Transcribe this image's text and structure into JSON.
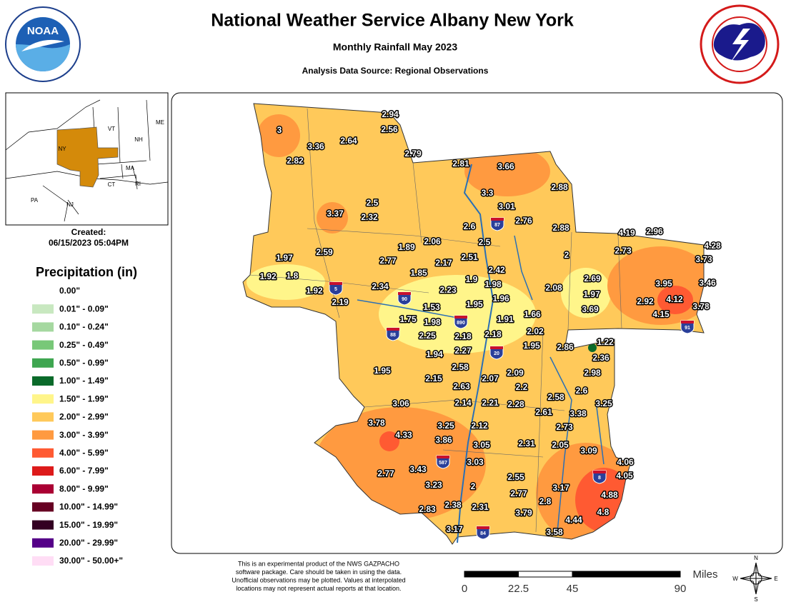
{
  "header": {
    "title": "National Weather Service Albany New York",
    "subtitle": "Monthly Rainfall May 2023",
    "source": "Analysis Data Source: Regional Observations"
  },
  "logos": {
    "noaa": "NOAA"
  },
  "inset": {
    "labels": [
      "ME",
      "VT",
      "NH",
      "NY",
      "MA",
      "CT",
      "RI",
      "PA",
      "NJ"
    ]
  },
  "created": {
    "label": "Created:",
    "date": "06/15/2023 05:04PM"
  },
  "legend": {
    "title": "Precipitation (in)",
    "items": [
      {
        "label": "0.00\"",
        "color": "#ffffff"
      },
      {
        "label": "0.01\" - 0.09\"",
        "color": "#c8e8c0"
      },
      {
        "label": "0.10\" - 0.24\"",
        "color": "#a5d8a0"
      },
      {
        "label": "0.25\" - 0.49\"",
        "color": "#78c878"
      },
      {
        "label": "0.50\" - 0.99\"",
        "color": "#3ea650"
      },
      {
        "label": "1.00\" - 1.49\"",
        "color": "#0a6a2a"
      },
      {
        "label": "1.50\" - 1.99\"",
        "color": "#fff58a"
      },
      {
        "label": "2.00\" - 2.99\"",
        "color": "#ffc95a"
      },
      {
        "label": "3.00\" - 3.99\"",
        "color": "#ff9a40"
      },
      {
        "label": "4.00\" - 5.99\"",
        "color": "#ff5a32"
      },
      {
        "label": "6.00\" - 7.99\"",
        "color": "#dd1a1a"
      },
      {
        "label": "8.00\" - 9.99\"",
        "color": "#aa0033"
      },
      {
        "label": "10.00\" - 14.99\"",
        "color": "#660022"
      },
      {
        "label": "15.00\" - 19.99\"",
        "color": "#330022"
      },
      {
        "label": "20.00\" - 29.99\"",
        "color": "#550088"
      },
      {
        "label": "30.00\" - 50.00+\"",
        "color": "#ffddf5"
      }
    ]
  },
  "map": {
    "stations": [
      2.94,
      2.56,
      3,
      3.36,
      2.64,
      2.82,
      2.79,
      2.81,
      3.66,
      3.3,
      2.88,
      3.01,
      2.5,
      3.37,
      2.32,
      2.76,
      2.6,
      2.88,
      4.19,
      2.96,
      4.28,
      2.06,
      2.5,
      1.89,
      2.73,
      2.59,
      1.97,
      2,
      2.17,
      2.51,
      2.77,
      3.73,
      1.85,
      2.42,
      1.92,
      1.8,
      1.9,
      1.98,
      2.69,
      3.95,
      3.46,
      2.34,
      1.92,
      2.23,
      2.08,
      1.97,
      1.96,
      2.92,
      4.12,
      2.19,
      1.95,
      1.53,
      3.69,
      3.78,
      4.15,
      1.66,
      1.75,
      1.98,
      1.91,
      2.02,
      2.25,
      2.18,
      2.18,
      1.22,
      1.95,
      2.86,
      2.27,
      1.94,
      2.36,
      2.58,
      1.95,
      2.98,
      2.09,
      2.15,
      2.07,
      2.63,
      2.2,
      2.6,
      2.58,
      3.06,
      2.14,
      2.21,
      2.28,
      3.25,
      2.61,
      3.38,
      3.78,
      3.25,
      2.12,
      2.73,
      4.33,
      3.86,
      3.05,
      2.31,
      2.05,
      3.09,
      3.03,
      4.06,
      3.43,
      2.77,
      4.05,
      2.55,
      2,
      3.23,
      3.17,
      2.77,
      4.88,
      2.8,
      2.38,
      2.31,
      2.83,
      4.8,
      3.79,
      4.44,
      3.17,
      3.58
    ],
    "interstates": [
      87,
      5,
      90,
      890,
      88,
      20,
      587,
      8,
      91,
      84
    ]
  },
  "disclaimer": [
    "This is an experimental product of the NWS GAZPACHO",
    "software package. Care should be taken in using the data.",
    "Unofficial observations may be plotted. Values at interpolated",
    "locations may not represent actual reports at that location."
  ],
  "scale": {
    "labels": [
      0,
      22.5,
      45,
      90
    ],
    "unit": "Miles"
  },
  "compass": {
    "n": "N",
    "s": "S",
    "e": "E",
    "w": "W"
  }
}
